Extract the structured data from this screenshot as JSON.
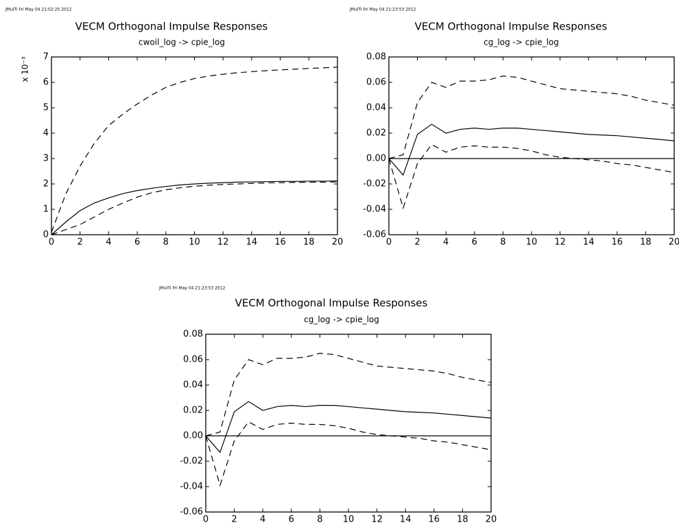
{
  "chart_data": [
    {
      "type": "line",
      "header": "JMulTi   Fri May 04 21:02:25 2012",
      "title": "VECM Orthogonal Impulse Responses",
      "subtitle": "cwoil_log -> cpie_log",
      "ylabel": "x 10⁻³",
      "x": [
        0,
        1,
        2,
        3,
        4,
        5,
        6,
        7,
        8,
        9,
        10,
        11,
        12,
        13,
        14,
        15,
        16,
        17,
        18,
        19,
        20
      ],
      "xlim": [
        0,
        20
      ],
      "xticks": [
        0,
        2,
        4,
        6,
        8,
        10,
        12,
        14,
        16,
        18,
        20
      ],
      "ylim": [
        0,
        7
      ],
      "yticks": [
        0,
        1,
        2,
        3,
        4,
        5,
        6,
        7
      ],
      "zero_line": false,
      "series": [
        {
          "color": "#000000",
          "dash": false,
          "values": [
            0,
            0.5,
            0.95,
            1.25,
            1.45,
            1.62,
            1.74,
            1.83,
            1.9,
            1.96,
            2.0,
            2.03,
            2.05,
            2.07,
            2.08,
            2.09,
            2.1,
            2.1,
            2.11,
            2.11,
            2.12
          ]
        },
        {
          "color": "#000000",
          "dash": true,
          "values": [
            0.1,
            1.6,
            2.7,
            3.6,
            4.3,
            4.75,
            5.15,
            5.5,
            5.8,
            6.0,
            6.15,
            6.25,
            6.32,
            6.38,
            6.42,
            6.46,
            6.49,
            6.52,
            6.55,
            6.57,
            6.6
          ]
        },
        {
          "color": "#000000",
          "dash": true,
          "values": [
            0,
            0.2,
            0.4,
            0.7,
            1.0,
            1.25,
            1.48,
            1.65,
            1.77,
            1.85,
            1.91,
            1.95,
            1.98,
            2.0,
            2.02,
            2.04,
            2.05,
            2.06,
            2.07,
            2.07,
            2.08
          ]
        }
      ]
    },
    {
      "type": "line",
      "header": "JMulTi   Fri May 04 21:23:53 2012",
      "title": "VECM Orthogonal Impulse Responses",
      "subtitle": "cg_log -> cpie_log",
      "x": [
        0,
        1,
        2,
        3,
        4,
        5,
        6,
        7,
        8,
        9,
        10,
        11,
        12,
        13,
        14,
        15,
        16,
        17,
        18,
        19,
        20
      ],
      "xlim": [
        0,
        20
      ],
      "xticks": [
        0,
        2,
        4,
        6,
        8,
        10,
        12,
        14,
        16,
        18,
        20
      ],
      "ylim": [
        -0.06,
        0.08
      ],
      "yticks": [
        -0.06,
        -0.04,
        -0.02,
        {
          "value": 0,
          "label": "0.00"
        },
        0.02,
        0.04,
        0.06,
        0.08
      ],
      "zero_line": true,
      "series": [
        {
          "color": "#000000",
          "dash": false,
          "values": [
            0,
            -0.013,
            0.019,
            0.027,
            0.02,
            0.023,
            0.024,
            0.023,
            0.024,
            0.024,
            0.023,
            0.022,
            0.021,
            0.02,
            0.019,
            0.0185,
            0.018,
            0.017,
            0.016,
            0.015,
            0.014
          ]
        },
        {
          "color": "#000000",
          "dash": true,
          "values": [
            0,
            0.003,
            0.044,
            0.06,
            0.056,
            0.061,
            0.061,
            0.062,
            0.065,
            0.064,
            0.061,
            0.058,
            0.055,
            0.054,
            0.053,
            0.052,
            0.051,
            0.049,
            0.046,
            0.044,
            0.042
          ]
        },
        {
          "color": "#000000",
          "dash": true,
          "values": [
            0,
            -0.039,
            -0.004,
            0.011,
            0.005,
            0.009,
            0.01,
            0.009,
            0.009,
            0.008,
            0.006,
            0.003,
            0.001,
            0,
            -0.001,
            -0.002,
            -0.004,
            -0.005,
            -0.007,
            -0.009,
            -0.011
          ]
        }
      ]
    },
    {
      "type": "line",
      "header": "JMulTi   Fri May 04 21:23:53 2012",
      "title": "VECM Orthogonal Impulse Responses",
      "subtitle": "cg_log -> cpie_log",
      "x": [
        0,
        1,
        2,
        3,
        4,
        5,
        6,
        7,
        8,
        9,
        10,
        11,
        12,
        13,
        14,
        15,
        16,
        17,
        18,
        19,
        20
      ],
      "xlim": [
        0,
        20
      ],
      "xticks": [
        0,
        2,
        4,
        6,
        8,
        10,
        12,
        14,
        16,
        18,
        20
      ],
      "ylim": [
        -0.06,
        0.08
      ],
      "yticks": [
        -0.06,
        -0.04,
        -0.02,
        {
          "value": 0,
          "label": "0.00"
        },
        0.02,
        0.04,
        0.06,
        0.08
      ],
      "zero_line": true,
      "series": [
        {
          "color": "#000000",
          "dash": false,
          "values": [
            0,
            -0.013,
            0.019,
            0.027,
            0.02,
            0.023,
            0.024,
            0.023,
            0.024,
            0.024,
            0.023,
            0.022,
            0.021,
            0.02,
            0.019,
            0.0185,
            0.018,
            0.017,
            0.016,
            0.015,
            0.014
          ]
        },
        {
          "color": "#000000",
          "dash": true,
          "values": [
            0,
            0.003,
            0.044,
            0.06,
            0.056,
            0.061,
            0.061,
            0.062,
            0.065,
            0.064,
            0.061,
            0.058,
            0.055,
            0.054,
            0.053,
            0.052,
            0.051,
            0.049,
            0.046,
            0.044,
            0.042
          ]
        },
        {
          "color": "#000000",
          "dash": true,
          "values": [
            0,
            -0.039,
            -0.004,
            0.011,
            0.005,
            0.009,
            0.01,
            0.009,
            0.009,
            0.008,
            0.006,
            0.003,
            0.001,
            0,
            -0.001,
            -0.002,
            -0.004,
            -0.005,
            -0.007,
            -0.009,
            -0.011
          ]
        }
      ]
    }
  ]
}
